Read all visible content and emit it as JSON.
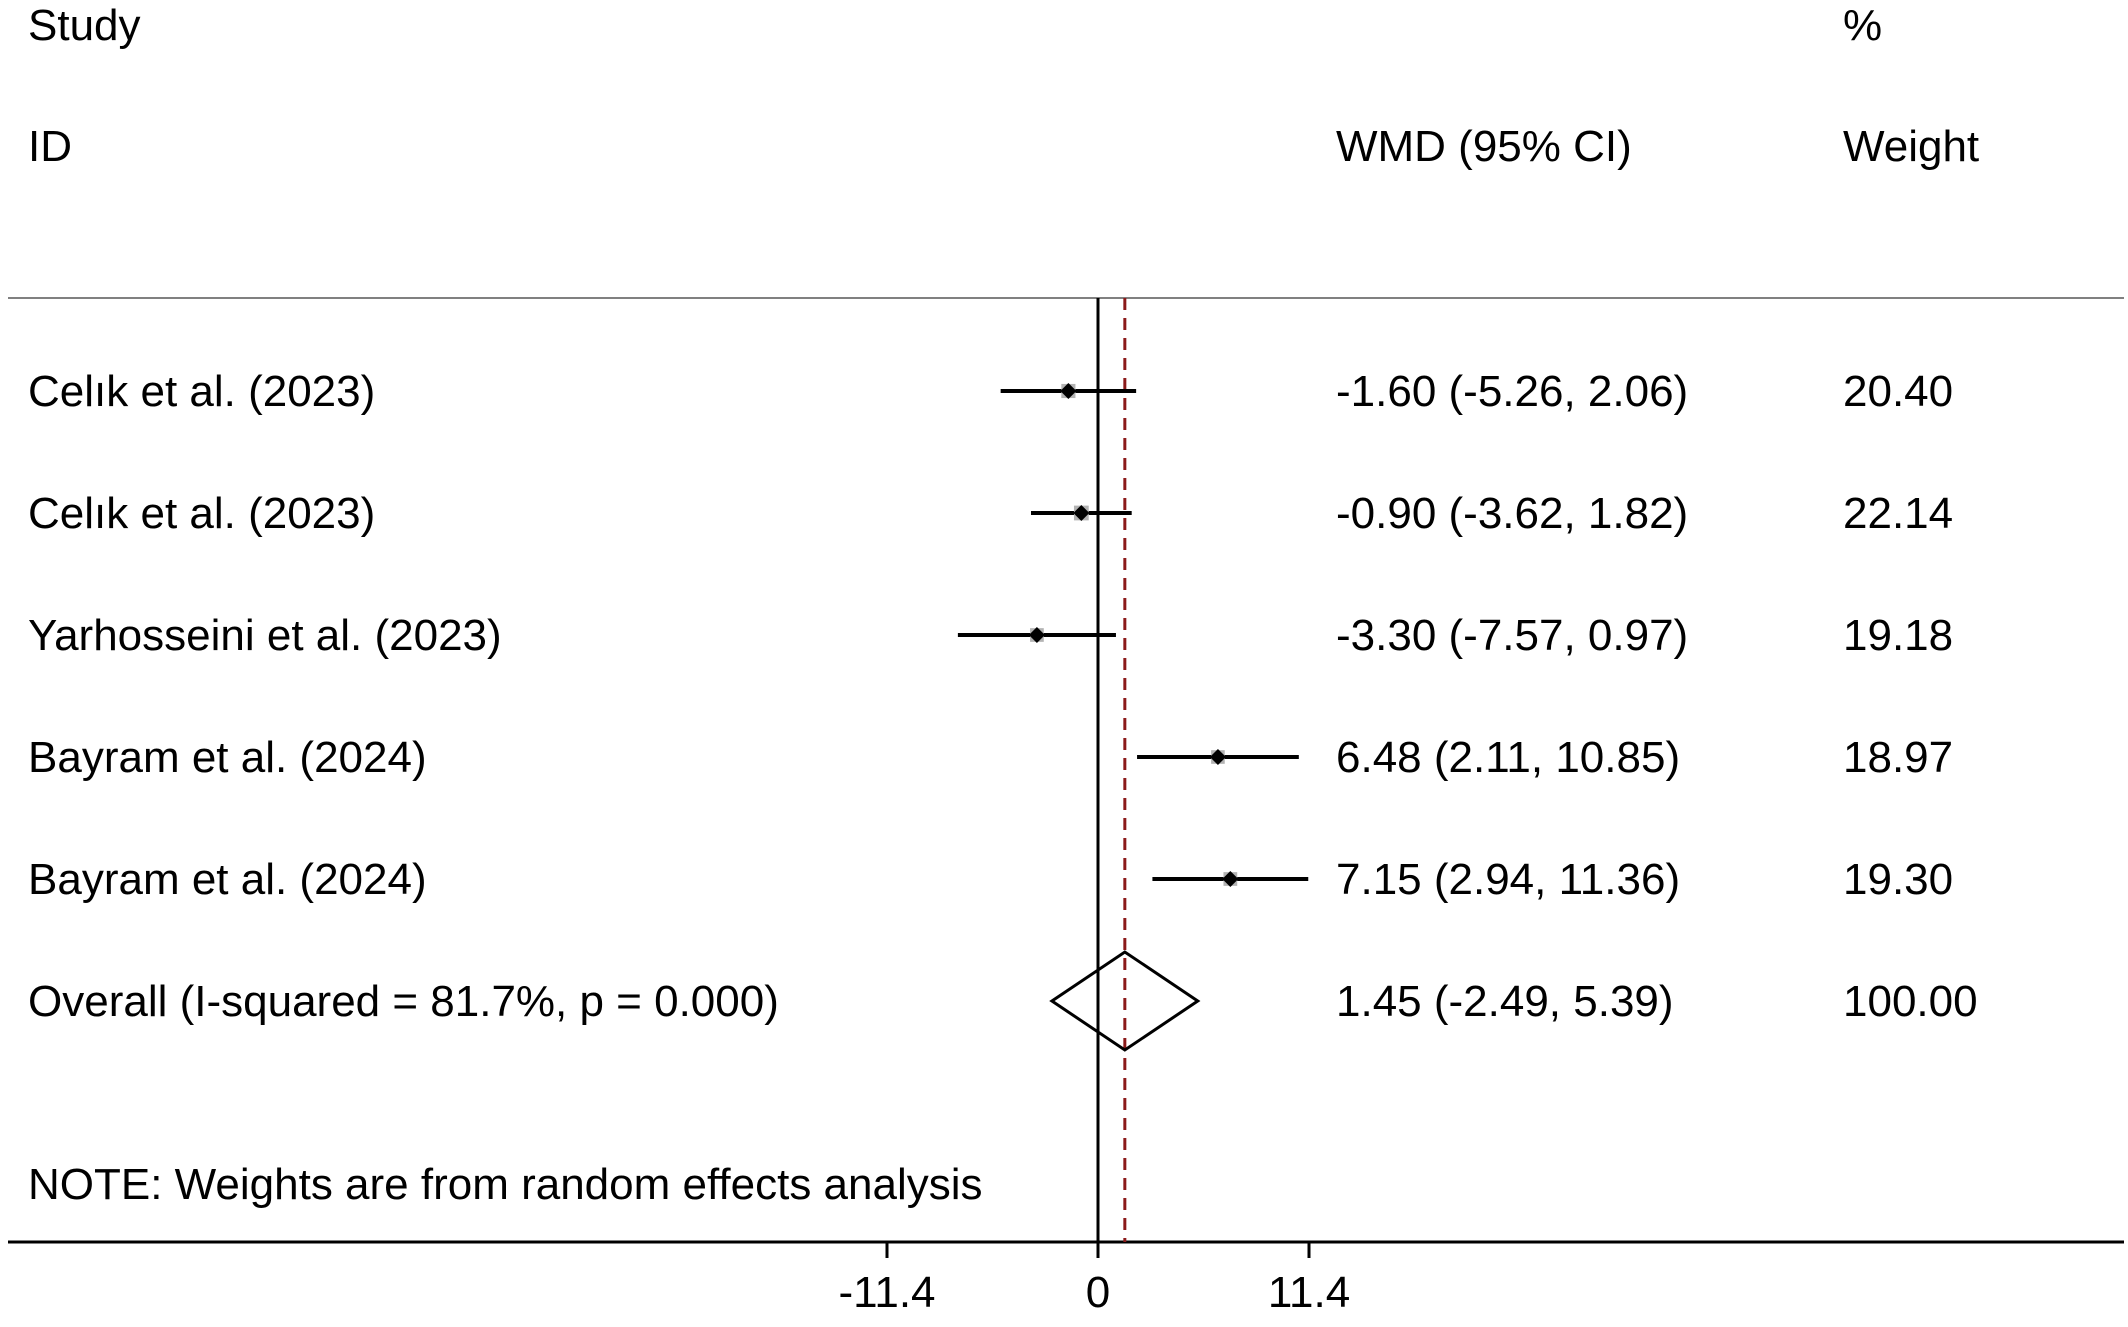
{
  "headers": {
    "study_top": "Study",
    "study_bottom": "ID",
    "effect": "WMD (95% CI)",
    "weight_top": "%",
    "weight_bottom": "Weight"
  },
  "note": "NOTE: Weights are from random effects analysis",
  "colors": {
    "text": "#000000",
    "null_line": "#000000",
    "overall_line": "#8b1a1a",
    "weight_box": "#b3b3b3"
  },
  "chart_data": {
    "type": "forest",
    "measure": "WMD",
    "xlim": [
      -11.4,
      11.4
    ],
    "xticks": [
      -11.4,
      0,
      11.4
    ],
    "xtick_labels": [
      "-11.4",
      "0",
      "11.4"
    ],
    "studies": [
      {
        "label": "Celık et al.  (2023)",
        "estimate": -1.6,
        "lower": -5.26,
        "upper": 2.06,
        "ci_text": "-1.60 (-5.26, 2.06)",
        "weight": 20.4,
        "weight_text": "20.40"
      },
      {
        "label": "Celık et al.  (2023)",
        "estimate": -0.9,
        "lower": -3.62,
        "upper": 1.82,
        "ci_text": "-0.90 (-3.62, 1.82)",
        "weight": 22.14,
        "weight_text": "22.14"
      },
      {
        "label": "Yarhosseini et al. (2023)",
        "estimate": -3.3,
        "lower": -7.57,
        "upper": 0.97,
        "ci_text": "-3.30 (-7.57, 0.97)",
        "weight": 19.18,
        "weight_text": "19.18"
      },
      {
        "label": "Bayram et al. (2024)",
        "estimate": 6.48,
        "lower": 2.11,
        "upper": 10.85,
        "ci_text": "6.48 (2.11, 10.85)",
        "weight": 18.97,
        "weight_text": "18.97"
      },
      {
        "label": "Bayram et al. (2024)",
        "estimate": 7.15,
        "lower": 2.94,
        "upper": 11.36,
        "ci_text": "7.15 (2.94, 11.36)",
        "weight": 19.3,
        "weight_text": "19.30"
      }
    ],
    "overall": {
      "label": "Overall  (I-squared = 81.7%, p = 0.000)",
      "estimate": 1.45,
      "lower": -2.49,
      "upper": 5.39,
      "ci_text": "1.45 (-2.49, 5.39)",
      "weight": 100.0,
      "weight_text": "100.00"
    }
  }
}
